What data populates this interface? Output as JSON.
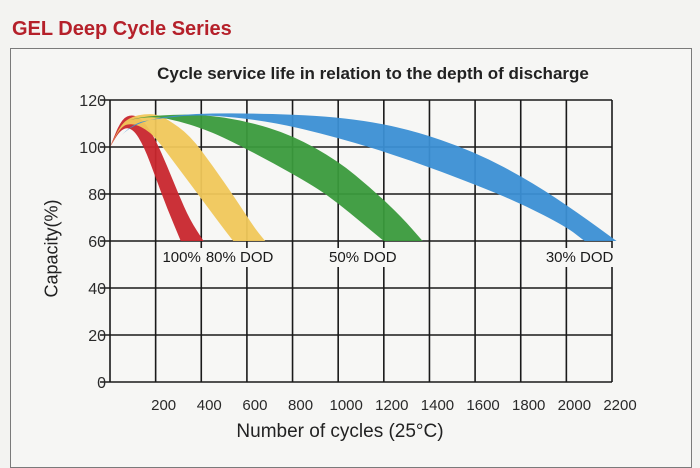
{
  "header": {
    "series_title": "GEL Deep Cycle Series"
  },
  "chart_data": {
    "type": "area",
    "title": "Cycle service life in relation to the depth of discharge",
    "xlabel": "Number of cycles (25°C)",
    "ylabel": "Capacity(%)",
    "xlim": [
      0,
      2200
    ],
    "ylim": [
      0,
      120
    ],
    "x_ticks": [
      "200",
      "400",
      "600",
      "800",
      "1000",
      "1200",
      "1400",
      "1600",
      "1800",
      "2000",
      "2200"
    ],
    "y_ticks": [
      "0",
      "20",
      "40",
      "60",
      "80",
      "100",
      "120"
    ],
    "grid": true,
    "series": [
      {
        "name": "100% DOD",
        "color": "#c8262d",
        "upper": [
          [
            0,
            100
          ],
          [
            50,
            112
          ],
          [
            100,
            114
          ],
          [
            150,
            111
          ],
          [
            200,
            103
          ],
          [
            250,
            92
          ],
          [
            300,
            80
          ],
          [
            350,
            69
          ],
          [
            410,
            60
          ]
        ],
        "lower": [
          [
            0,
            100
          ],
          [
            50,
            108
          ],
          [
            100,
            108
          ],
          [
            150,
            100
          ],
          [
            200,
            87
          ],
          [
            250,
            74
          ],
          [
            310,
            60
          ]
        ]
      },
      {
        "name": "80% DOD",
        "color": "#f0c75a",
        "upper": [
          [
            0,
            100
          ],
          [
            50,
            110
          ],
          [
            100,
            113
          ],
          [
            150,
            114
          ],
          [
            200,
            114
          ],
          [
            250,
            112
          ],
          [
            350,
            105
          ],
          [
            450,
            92
          ],
          [
            550,
            78
          ],
          [
            630,
            66
          ],
          [
            680,
            60
          ]
        ],
        "lower": [
          [
            0,
            100
          ],
          [
            50,
            109
          ],
          [
            100,
            110
          ],
          [
            150,
            108
          ],
          [
            200,
            104
          ],
          [
            300,
            91
          ],
          [
            400,
            78
          ],
          [
            500,
            65
          ],
          [
            540,
            60
          ]
        ]
      },
      {
        "name": "50% DOD",
        "color": "#3a9a3c",
        "upper": [
          [
            0,
            100
          ],
          [
            50,
            110
          ],
          [
            100,
            112
          ],
          [
            200,
            113.5
          ],
          [
            400,
            114
          ],
          [
            600,
            111
          ],
          [
            800,
            105
          ],
          [
            1000,
            94
          ],
          [
            1150,
            82
          ],
          [
            1280,
            70
          ],
          [
            1370,
            60
          ]
        ],
        "lower": [
          [
            0,
            100
          ],
          [
            50,
            110
          ],
          [
            100,
            112
          ],
          [
            200,
            113
          ],
          [
            300,
            111
          ],
          [
            400,
            108
          ],
          [
            500,
            104
          ],
          [
            700,
            94
          ],
          [
            900,
            83
          ],
          [
            1000,
            76
          ],
          [
            1100,
            68
          ],
          [
            1200,
            60
          ]
        ]
      },
      {
        "name": "30% DOD",
        "color": "#3b8fd4",
        "upper": [
          [
            0,
            100
          ],
          [
            100,
            110
          ],
          [
            300,
            114
          ],
          [
            600,
            114.5
          ],
          [
            1000,
            113
          ],
          [
            1300,
            108
          ],
          [
            1600,
            98
          ],
          [
            1850,
            85
          ],
          [
            2050,
            72
          ],
          [
            2220,
            60
          ]
        ],
        "lower": [
          [
            0,
            100
          ],
          [
            100,
            110
          ],
          [
            200,
            112
          ],
          [
            400,
            114
          ],
          [
            700,
            111
          ],
          [
            1000,
            104
          ],
          [
            1300,
            95
          ],
          [
            1600,
            84
          ],
          [
            1800,
            76
          ],
          [
            2000,
            66
          ],
          [
            2080,
            60
          ]
        ]
      }
    ],
    "annotations": [
      "100% DOD",
      "80% DOD",
      "50% DOD",
      "30% DOD"
    ]
  }
}
